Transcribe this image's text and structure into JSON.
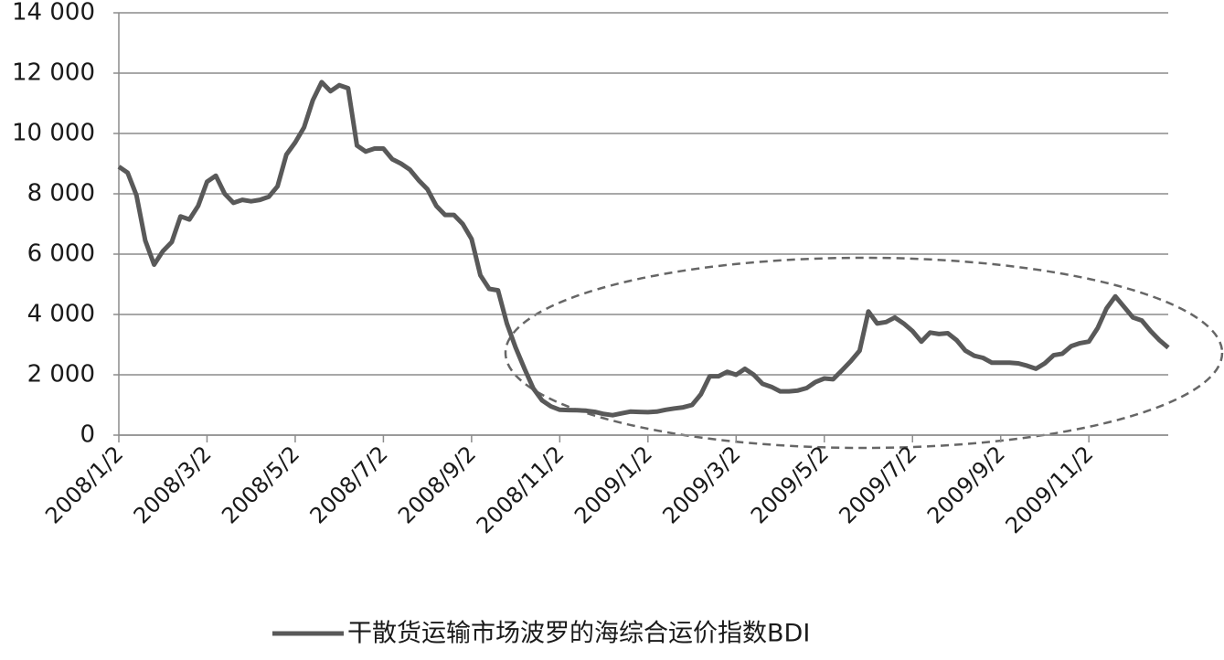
{
  "chart_data": {
    "type": "line",
    "categories": [
      "2008/1/2",
      null,
      null,
      null,
      null,
      null,
      null,
      null,
      null,
      null,
      "2008/3/2",
      null,
      null,
      null,
      null,
      null,
      null,
      null,
      null,
      null,
      "2008/5/2",
      null,
      null,
      null,
      null,
      null,
      null,
      null,
      null,
      null,
      "2008/7/2",
      null,
      null,
      null,
      null,
      null,
      null,
      null,
      null,
      null,
      "2008/9/2",
      null,
      null,
      null,
      null,
      null,
      null,
      null,
      null,
      null,
      "2008/11/2",
      null,
      null,
      null,
      null,
      null,
      null,
      null,
      null,
      null,
      "2009/1/2",
      null,
      null,
      null,
      null,
      null,
      null,
      null,
      null,
      null,
      "2009/3/2",
      null,
      null,
      null,
      null,
      null,
      null,
      null,
      null,
      null,
      "2009/5/2",
      null,
      null,
      null,
      null,
      null,
      null,
      null,
      null,
      null,
      "2009/7/2",
      null,
      null,
      null,
      null,
      null,
      null,
      null,
      null,
      null,
      "2009/9/2",
      null,
      null,
      null,
      null,
      null,
      null,
      null,
      null,
      null,
      "2009/11/2",
      null,
      null,
      null,
      null,
      null,
      null,
      null,
      null,
      null
    ],
    "series": [
      {
        "name": "干散货运输市场波罗的海综合运价指数BDI",
        "color": "#595959",
        "values": [
          8900,
          8700,
          7950,
          6450,
          5650,
          6100,
          6400,
          7250,
          7150,
          7600,
          8400,
          8600,
          8000,
          7700,
          7800,
          7750,
          7800,
          7900,
          8250,
          9300,
          9700,
          10200,
          11100,
          11700,
          11400,
          11600,
          11500,
          9600,
          9400,
          9500,
          9500,
          9150,
          9000,
          8800,
          8450,
          8150,
          7600,
          7300,
          7300,
          7000,
          6500,
          5300,
          4850,
          4800,
          3700,
          2900,
          2200,
          1550,
          1150,
          950,
          840,
          830,
          825,
          810,
          770,
          700,
          660,
          720,
          780,
          770,
          760,
          780,
          840,
          885,
          920,
          1000,
          1350,
          1950,
          1950,
          2100,
          2000,
          2200,
          2000,
          1700,
          1600,
          1450,
          1450,
          1480,
          1560,
          1760,
          1880,
          1850,
          2150,
          2450,
          2800,
          4100,
          3700,
          3750,
          3900,
          3700,
          3450,
          3100,
          3400,
          3350,
          3380,
          3150,
          2800,
          2630,
          2560,
          2400,
          2400,
          2400,
          2380,
          2300,
          2200,
          2380,
          2650,
          2700,
          2950,
          3050,
          3100,
          3550,
          4200,
          4600,
          4250,
          3900,
          3800,
          3450,
          3150,
          2900
        ]
      }
    ],
    "ylim": [
      0,
      14000
    ],
    "yticks": [
      0,
      {
        "value": 2000,
        "label": "2 000"
      },
      {
        "value": 4000,
        "label": "4 000"
      },
      {
        "value": 6000,
        "label": "6 000"
      },
      {
        "value": 8000,
        "label": "8 000"
      },
      {
        "value": 10000,
        "label": "10 000"
      },
      {
        "value": 12000,
        "label": "12 000"
      },
      {
        "value": 14000,
        "label": "14 000"
      }
    ],
    "grid": true
  }
}
